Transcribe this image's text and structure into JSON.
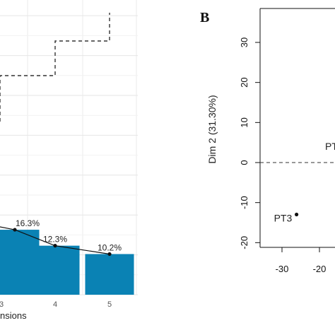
{
  "panel_b_label": "B",
  "chart_data": [
    {
      "type": "bar",
      "panel": "A",
      "xlabel": "Dimensions",
      "xlabel_visible": "nsions",
      "categories": [
        "3",
        "4",
        "5"
      ],
      "values": [
        16.3,
        12.3,
        10.2
      ],
      "data_labels": [
        "16.3%",
        "12.3%",
        "10.2%"
      ],
      "line_overlay": true,
      "cumulative_step_line": true,
      "grid": true,
      "bar_color": "#0a82b4"
    },
    {
      "type": "scatter",
      "panel": "B",
      "ylabel": "Dim 2 (31.30%)",
      "xlim": [
        -35,
        -15
      ],
      "ylim": [
        -22,
        35
      ],
      "xticks": [
        "-30",
        "-20"
      ],
      "yticks": [
        "30",
        "20",
        "10",
        "0",
        "-10",
        "-20"
      ],
      "points": [
        {
          "label": "PT3",
          "x": -28,
          "y": -13.5
        }
      ],
      "partial_label": "PT",
      "reference_line_y": 0
    }
  ]
}
